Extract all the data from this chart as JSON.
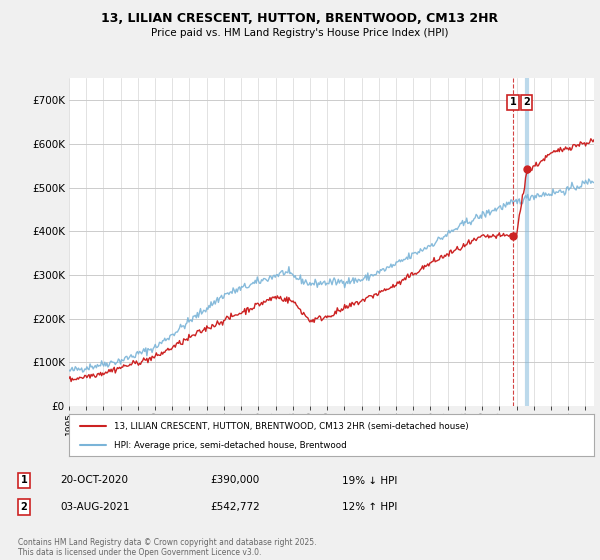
{
  "title_line1": "13, LILIAN CRESCENT, HUTTON, BRENTWOOD, CM13 2HR",
  "title_line2": "Price paid vs. HM Land Registry's House Price Index (HPI)",
  "ylim": [
    0,
    750000
  ],
  "yticks": [
    0,
    100000,
    200000,
    300000,
    400000,
    500000,
    600000,
    700000
  ],
  "hpi_color": "#7ab4d8",
  "price_color": "#cc2222",
  "marker1_x": 2020.8,
  "marker1_price": 390000,
  "marker1_hpi": 465000,
  "marker2_x": 2021.58,
  "marker2_price": 542772,
  "marker2_hpi": 480000,
  "legend_label1": "13, LILIAN CRESCENT, HUTTON, BRENTWOOD, CM13 2HR (semi-detached house)",
  "legend_label2": "HPI: Average price, semi-detached house, Brentwood",
  "annotation1_date": "20-OCT-2020",
  "annotation1_price": "£390,000",
  "annotation1_hpi": "19% ↓ HPI",
  "annotation2_date": "03-AUG-2021",
  "annotation2_price": "£542,772",
  "annotation2_hpi": "12% ↑ HPI",
  "footer": "Contains HM Land Registry data © Crown copyright and database right 2025.\nThis data is licensed under the Open Government Licence v3.0.",
  "background_color": "#f0f0f0",
  "plot_bg_color": "#ffffff",
  "xlim_start": 1995,
  "xlim_end": 2025.5
}
